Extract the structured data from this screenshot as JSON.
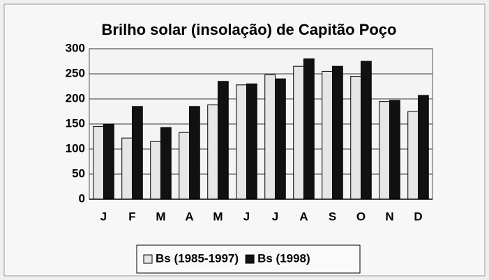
{
  "chart_data": {
    "type": "bar",
    "title": "Brilho solar (insolação) de Capitão Poço",
    "categories": [
      "J",
      "F",
      "M",
      "A",
      "M",
      "J",
      "J",
      "A",
      "S",
      "O",
      "N",
      "D"
    ],
    "series": [
      {
        "name": "Bs (1985-1997)",
        "color": "#e6e6e6",
        "values": [
          145,
          122,
          115,
          133,
          188,
          228,
          248,
          265,
          255,
          245,
          195,
          175
        ]
      },
      {
        "name": "Bs (1998)",
        "color": "#111111",
        "values": [
          150,
          185,
          143,
          185,
          235,
          230,
          240,
          280,
          265,
          275,
          197,
          207
        ]
      }
    ],
    "ylim": [
      0,
      300
    ],
    "yticks": [
      0,
      50,
      100,
      150,
      200,
      250,
      300
    ],
    "grid": true,
    "legend": "bottom"
  }
}
